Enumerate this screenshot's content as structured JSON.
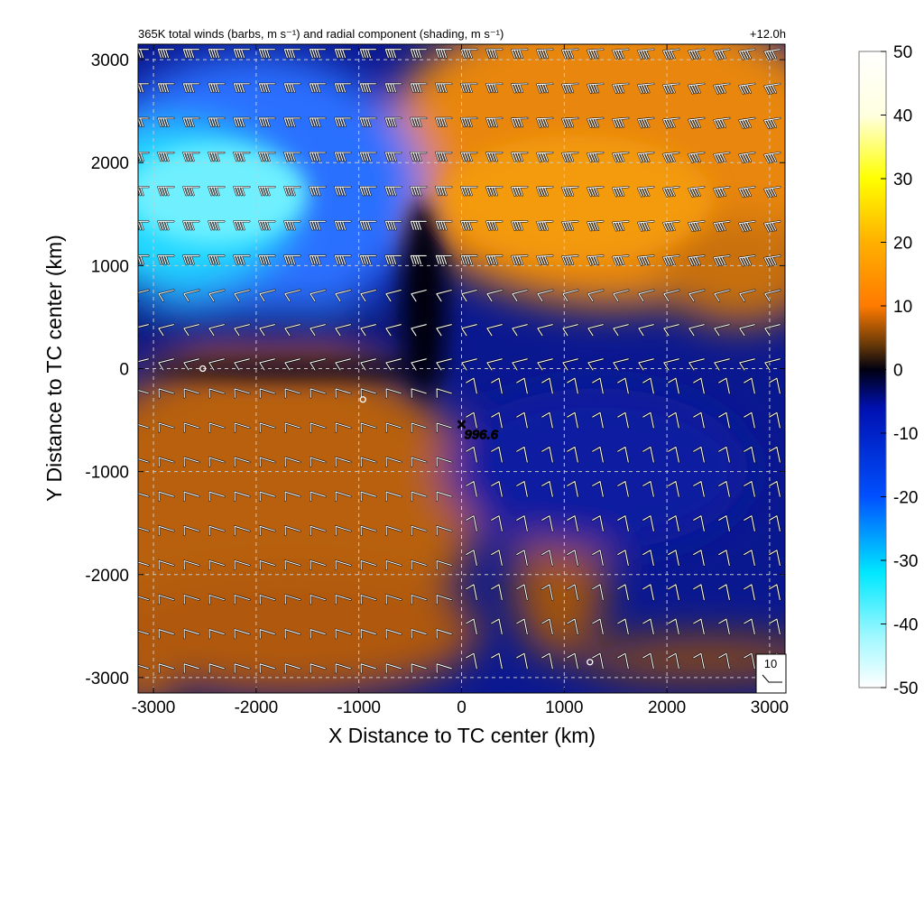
{
  "chart_data": {
    "type": "heatmap",
    "title": "365K total winds (barbs, m s⁻¹) and radial component (shading, m s⁻¹)",
    "time_label": "+12.0h",
    "xlabel": "X Distance to TC center (km)",
    "ylabel": "Y Distance to TC center (km)",
    "xlim": [
      -3150,
      3150
    ],
    "ylim": [
      -3150,
      3150
    ],
    "xticks": [
      -3000,
      -2000,
      -1000,
      0,
      1000,
      2000,
      3000
    ],
    "yticks": [
      -3000,
      -2000,
      -1000,
      0,
      1000,
      2000,
      3000
    ],
    "grid": true,
    "colorbar": {
      "range": [
        -50,
        50
      ],
      "ticks": [
        50,
        40,
        30,
        20,
        10,
        0,
        -10,
        -20,
        -30,
        -40,
        -50
      ],
      "colors": [
        "#ffffff",
        "#a0f8ff",
        "#00e8ff",
        "#0078ff",
        "#0010b0",
        "#000010",
        "#6a3a08",
        "#ff8c00",
        "#ffff00",
        "#ffffe0"
      ]
    },
    "center_marker": {
      "symbol": "×",
      "x": 0,
      "y": -550,
      "label": "996.6"
    },
    "calm_markers": [
      {
        "x": -2520,
        "y": 0
      },
      {
        "x": -960,
        "y": -300
      },
      {
        "x": 1250,
        "y": -2850
      }
    ],
    "reference_barb": {
      "label": "10",
      "speed": 10
    },
    "shading_regions": [
      {
        "name": "inflow-northwest",
        "x": -2000,
        "y": 1500,
        "value": -40
      },
      {
        "name": "outflow-northeast",
        "x": 1400,
        "y": 1800,
        "value": 18
      },
      {
        "name": "outflow-southwest",
        "x": -1700,
        "y": -1300,
        "value": 12
      },
      {
        "name": "inflow-southeast",
        "x": 1500,
        "y": -1300,
        "value": -12
      }
    ]
  }
}
